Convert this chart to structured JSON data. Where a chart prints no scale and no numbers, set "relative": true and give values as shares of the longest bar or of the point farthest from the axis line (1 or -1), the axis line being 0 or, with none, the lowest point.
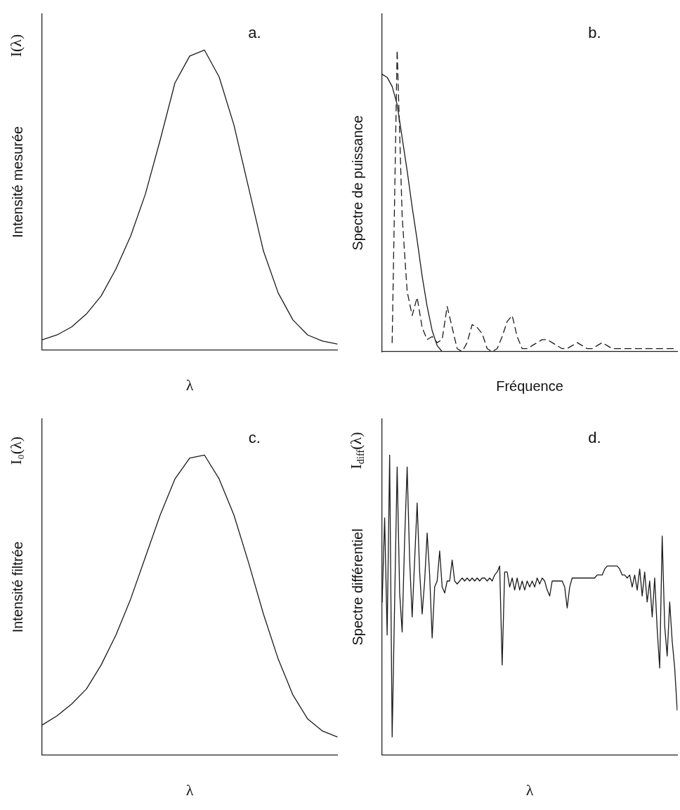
{
  "chart_data": [
    {
      "type": "line",
      "title": "a.",
      "xlabel": "λ",
      "ylabel": "Intensité mesurée",
      "annotations": [
        "I(λ)"
      ],
      "relative": true,
      "tick_labels": false,
      "grid": false,
      "legend": false,
      "marker": "none",
      "categories": [
        null,
        null,
        null,
        null,
        null,
        null,
        null,
        null,
        null,
        null,
        null,
        null,
        null,
        null,
        null,
        null,
        null,
        null,
        null,
        null,
        null
      ],
      "series": [
        {
          "color": "#1a1a1a",
          "values": [
            0.034,
            0.05,
            0.077,
            0.12,
            0.18,
            0.27,
            0.38,
            0.52,
            0.7,
            0.89,
            0.98,
            1.0,
            0.91,
            0.75,
            0.54,
            0.33,
            0.19,
            0.1,
            0.05,
            0.03,
            0.02
          ]
        }
      ]
    },
    {
      "type": "line",
      "title": "b.",
      "xlabel": "Fréquence",
      "ylabel": "Spectre de puissance",
      "relative": true,
      "tick_labels": false,
      "grid": false,
      "legend": false,
      "marker": "none",
      "categories": [
        null,
        null,
        null,
        null,
        null,
        null,
        null,
        null,
        null,
        null,
        null,
        null,
        null,
        null,
        null,
        null,
        null,
        null,
        null,
        null,
        null,
        null,
        null,
        null,
        null,
        null,
        null,
        null,
        null,
        null,
        null,
        null,
        null,
        null,
        null,
        null,
        null,
        null,
        null,
        null,
        null,
        null,
        null,
        null,
        null,
        null,
        null,
        null,
        null,
        null,
        null,
        null,
        null,
        null,
        null,
        null,
        null,
        null,
        null,
        null
      ],
      "series": [
        {
          "color": "#1a1a1a",
          "line_style": "solid",
          "values": [
            0.92,
            0.91,
            0.88,
            0.82,
            0.71,
            0.6,
            0.48,
            0.37,
            0.25,
            0.15,
            0.07,
            0.02,
            0,
            0,
            0,
            0,
            0,
            0,
            0,
            0,
            0,
            0,
            0,
            0,
            0,
            0,
            0,
            0,
            0,
            0,
            0,
            0,
            0,
            0,
            0,
            0,
            0,
            0,
            0,
            0,
            0,
            0,
            0,
            0,
            0,
            0,
            0,
            0,
            0,
            0,
            0,
            0,
            0,
            0,
            0,
            0,
            0,
            0,
            0,
            0
          ]
        },
        {
          "color": "#1a1a1a",
          "line_style": "dashed",
          "values": [
            null,
            null,
            0.03,
            1.0,
            0.45,
            0.2,
            0.12,
            0.18,
            0.08,
            0.04,
            0.05,
            0.03,
            0.04,
            0.15,
            0.08,
            0.01,
            0,
            0.03,
            0.09,
            0.08,
            0.06,
            0.01,
            0,
            0.01,
            0.05,
            0.1,
            0.12,
            0.05,
            0.01,
            0.01,
            0.02,
            0.03,
            0.04,
            0.04,
            0.03,
            0.02,
            0.01,
            0.01,
            0.02,
            0.03,
            0.02,
            0.01,
            0.01,
            0.02,
            0.03,
            0.02,
            0.01,
            0.01,
            0.01,
            0.01,
            0.01,
            0.01,
            0.01,
            0.01,
            0.01,
            0.01,
            0.01,
            0.01,
            0.01,
            0.01
          ]
        }
      ]
    },
    {
      "type": "line",
      "title": "c.",
      "xlabel": "λ",
      "ylabel": "Intensité filtrée",
      "annotations": [
        "I₀(λ)"
      ],
      "relative": true,
      "tick_labels": false,
      "grid": false,
      "legend": false,
      "marker": "none",
      "categories": [
        null,
        null,
        null,
        null,
        null,
        null,
        null,
        null,
        null,
        null,
        null,
        null,
        null,
        null,
        null,
        null,
        null,
        null,
        null,
        null,
        null
      ],
      "series": [
        {
          "color": "#1a1a1a",
          "values": [
            0.1,
            0.13,
            0.17,
            0.22,
            0.3,
            0.4,
            0.52,
            0.66,
            0.8,
            0.92,
            0.99,
            1.0,
            0.92,
            0.8,
            0.64,
            0.47,
            0.32,
            0.2,
            0.12,
            0.08,
            0.06
          ]
        }
      ]
    },
    {
      "type": "line",
      "title": "d.",
      "xlabel": "λ",
      "ylabel": "Spectre différentiel",
      "annotations": [
        "I$_{diff}$(λ)"
      ],
      "relative": true,
      "tick_labels": false,
      "grid": false,
      "legend": false,
      "marker": "none",
      "categories": [
        null,
        null,
        null,
        null,
        null,
        null,
        null,
        null,
        null,
        null,
        null,
        null,
        null,
        null,
        null,
        null,
        null,
        null,
        null,
        null,
        null,
        null,
        null,
        null,
        null,
        null,
        null,
        null,
        null,
        null,
        null,
        null,
        null,
        null,
        null,
        null,
        null,
        null,
        null,
        null,
        null,
        null,
        null,
        null,
        null,
        null,
        null,
        null,
        null,
        null,
        null,
        null,
        null,
        null,
        null,
        null,
        null,
        null,
        null,
        null,
        null,
        null,
        null,
        null,
        null,
        null,
        null,
        null,
        null,
        null,
        null,
        null,
        null,
        null,
        null,
        null,
        null,
        null,
        null,
        null,
        null,
        null,
        null,
        null,
        null,
        null,
        null,
        null,
        null,
        null,
        null,
        null,
        null,
        null,
        null,
        null,
        null,
        null,
        null,
        null,
        null,
        null,
        null,
        null,
        null,
        null,
        null,
        null,
        null,
        null,
        null,
        null,
        null,
        null,
        null,
        null,
        null,
        null,
        null
      ],
      "series": [
        {
          "color": "#1a1a1a",
          "values": [
            0.51,
            0.79,
            0.4,
            1.0,
            0.06,
            0.51,
            0.96,
            0.54,
            0.41,
            0.72,
            0.96,
            0.65,
            0.46,
            0.65,
            0.84,
            0.61,
            0.47,
            0.58,
            0.74,
            0.6,
            0.39,
            0.56,
            0.58,
            0.68,
            0.56,
            0.54,
            0.58,
            0.58,
            0.65,
            0.58,
            0.57,
            0.58,
            0.59,
            0.58,
            0.59,
            0.58,
            0.59,
            0.58,
            0.59,
            0.58,
            0.59,
            0.59,
            0.58,
            0.59,
            0.58,
            0.6,
            0.61,
            0.63,
            0.3,
            0.61,
            0.61,
            0.56,
            0.59,
            0.55,
            0.59,
            0.55,
            0.58,
            0.55,
            0.58,
            0.56,
            0.58,
            0.56,
            0.59,
            0.57,
            0.59,
            0.58,
            0.55,
            0.53,
            0.58,
            0.58,
            0.58,
            0.58,
            0.58,
            0.56,
            0.49,
            0.56,
            0.59,
            0.59,
            0.59,
            0.59,
            0.59,
            0.59,
            0.59,
            0.59,
            0.59,
            0.59,
            0.6,
            0.6,
            0.6,
            0.62,
            0.63,
            0.63,
            0.63,
            0.63,
            0.63,
            0.62,
            0.6,
            0.6,
            0.59,
            0.6,
            0.56,
            0.6,
            0.55,
            0.62,
            0.53,
            0.61,
            0.51,
            0.58,
            0.46,
            0.59,
            0.42,
            0.29,
            0.73,
            0.43,
            0.33,
            0.51,
            0.38,
            0.29,
            0.15
          ]
        }
      ]
    }
  ]
}
